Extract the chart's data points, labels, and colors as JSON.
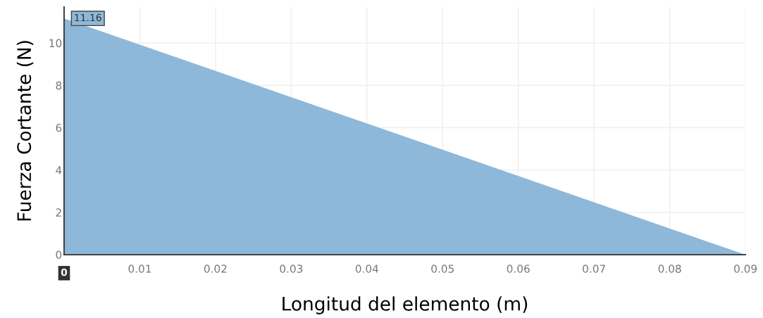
{
  "chart_data": {
    "type": "area",
    "xlabel": "Longitud del elemento (m)",
    "ylabel": "Fuerza Cortante (N)",
    "x": [
      0,
      0.09
    ],
    "series": [
      {
        "color": "#8db8d9",
        "values": [
          11.16,
          0
        ]
      }
    ],
    "xlim": [
      0,
      0.09
    ],
    "ylim": [
      0,
      11.7
    ],
    "xticks": [
      0.01,
      0.02,
      0.03,
      0.04,
      0.05,
      0.06,
      0.07,
      0.08,
      0.09
    ],
    "yticks": [
      0,
      2,
      4,
      6,
      8,
      10
    ],
    "grid": true,
    "annotations": [
      {
        "text": "11.16",
        "x": 0,
        "y": 11.16
      },
      {
        "text": "0",
        "x": 0,
        "y": 0
      }
    ]
  }
}
